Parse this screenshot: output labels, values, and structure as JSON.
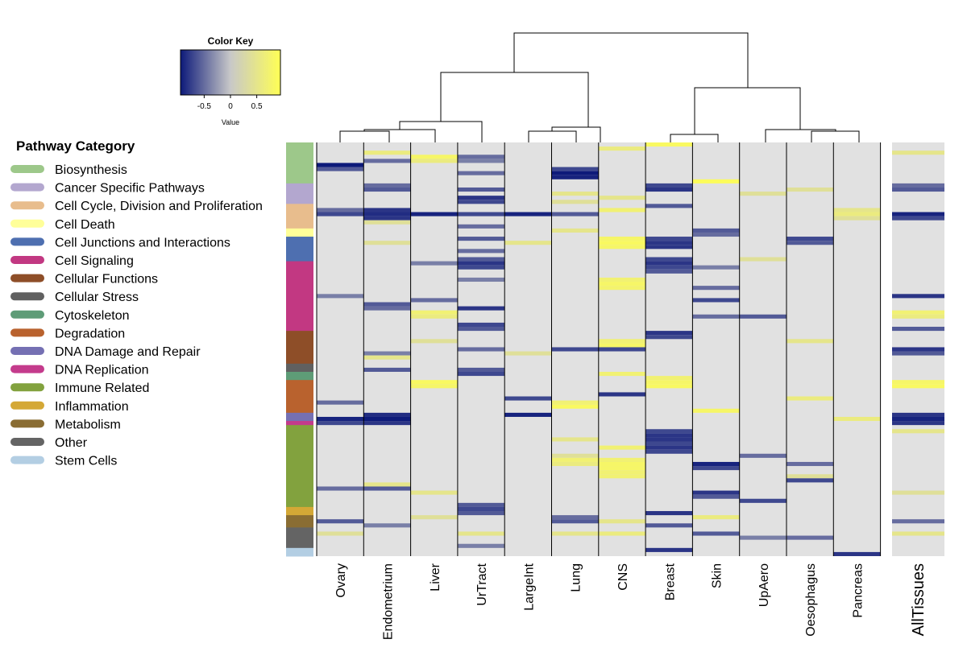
{
  "chart_data": {
    "type": "heatmap",
    "color_key": {
      "title": "Color Key",
      "xlabel": "Value",
      "ticks": [
        "-0.5",
        "0",
        "0.5"
      ],
      "tick_values": [
        -0.5,
        0,
        0.5
      ],
      "range": [
        -0.95,
        0.95
      ],
      "colors": {
        "low": "#0d1a7a",
        "mid": "#c8c8c8",
        "high": "#ffff55"
      }
    },
    "legend": {
      "title": "Pathway Category",
      "items": [
        {
          "label": "Biosynthesis",
          "color": "#9dc88a"
        },
        {
          "label": "Cancer Specific Pathways",
          "color": "#b3a7cf"
        },
        {
          "label": "Cell Cycle, Division and Proliferation",
          "color": "#e8bd8d"
        },
        {
          "label": "Cell Death",
          "color": "#ffff99"
        },
        {
          "label": "Cell Junctions and Interactions",
          "color": "#4e6fb0"
        },
        {
          "label": "Cell Signaling",
          "color": "#c23882"
        },
        {
          "label": "Cellular Functions",
          "color": "#8e4e28"
        },
        {
          "label": "Cellular Stress",
          "color": "#606060"
        },
        {
          "label": "Cytoskeleton",
          "color": "#5e9c77"
        },
        {
          "label": "Degradation",
          "color": "#b9622e"
        },
        {
          "label": "DNA Damage and Repair",
          "color": "#7570b3"
        },
        {
          "label": "DNA Replication",
          "color": "#c43b8c"
        },
        {
          "label": "Immune Related",
          "color": "#82a23e"
        },
        {
          "label": "Inflammation",
          "color": "#d4a836"
        },
        {
          "label": "Metabolism",
          "color": "#8a6d33"
        },
        {
          "label": "Other",
          "color": "#646464"
        },
        {
          "label": "Stem Cells",
          "color": "#b3cee3"
        }
      ]
    },
    "row_categories": [
      {
        "label": "Biosynthesis",
        "rows": 10
      },
      {
        "label": "Cancer Specific Pathways",
        "rows": 5
      },
      {
        "label": "Cell Cycle, Division and Proliferation",
        "rows": 6
      },
      {
        "label": "Cell Death",
        "rows": 2
      },
      {
        "label": "Cell Junctions and Interactions",
        "rows": 6
      },
      {
        "label": "Cell Signaling",
        "rows": 17
      },
      {
        "label": "Cellular Functions",
        "rows": 8
      },
      {
        "label": "Cellular Stress",
        "rows": 2
      },
      {
        "label": "Cytoskeleton",
        "rows": 2
      },
      {
        "label": "Degradation",
        "rows": 8
      },
      {
        "label": "DNA Damage and Repair",
        "rows": 2
      },
      {
        "label": "DNA Replication",
        "rows": 1
      },
      {
        "label": "Immune Related",
        "rows": 20
      },
      {
        "label": "Inflammation",
        "rows": 2
      },
      {
        "label": "Metabolism",
        "rows": 3
      },
      {
        "label": "Other",
        "rows": 5
      },
      {
        "label": "Stem Cells",
        "rows": 2
      }
    ],
    "columns": [
      "Ovary",
      "Endometrium",
      "Liver",
      "UrTract",
      "LargeInt",
      "Lung",
      "CNS",
      "Breast",
      "Skin",
      "UpAero",
      "Oesophagus",
      "Pancreas"
    ],
    "summary_column": "AllTissues",
    "n_rows": 101,
    "dendrogram_order": [
      [
        "Ovary",
        "Endometrium",
        "Liver",
        "UrTract"
      ],
      [
        "LargeInt",
        "Lung",
        "CNS"
      ],
      [
        "Breast",
        "Skin"
      ],
      [
        "UpAero",
        "Oesophagus",
        "Pancreas"
      ]
    ],
    "cells": {
      "Ovary": [
        [
          5,
          -0.95
        ],
        [
          6,
          -0.6
        ],
        [
          16,
          -0.5
        ],
        [
          17,
          -0.7
        ],
        [
          37,
          -0.4
        ],
        [
          63,
          -0.5
        ],
        [
          67,
          -0.9
        ],
        [
          68,
          -0.7
        ],
        [
          84,
          -0.5
        ],
        [
          92,
          -0.6
        ],
        [
          95,
          0.4
        ]
      ],
      "Endometrium": [
        [
          2,
          0.6
        ],
        [
          4,
          -0.5
        ],
        [
          10,
          -0.5
        ],
        [
          11,
          -0.6
        ],
        [
          16,
          -0.8
        ],
        [
          17,
          -0.85
        ],
        [
          18,
          -0.8
        ],
        [
          19,
          0.4
        ],
        [
          24,
          0.4
        ],
        [
          39,
          -0.6
        ],
        [
          40,
          -0.5
        ],
        [
          51,
          -0.4
        ],
        [
          52,
          0.5
        ],
        [
          55,
          -0.6
        ],
        [
          66,
          -0.85
        ],
        [
          67,
          -0.95
        ],
        [
          68,
          -0.8
        ],
        [
          83,
          0.5
        ],
        [
          84,
          -0.6
        ],
        [
          93,
          -0.4
        ]
      ],
      "Liver": [
        [
          3,
          0.8
        ],
        [
          4,
          0.6
        ],
        [
          17,
          -0.9
        ],
        [
          29,
          -0.4
        ],
        [
          38,
          -0.5
        ],
        [
          41,
          0.7
        ],
        [
          42,
          0.6
        ],
        [
          48,
          0.4
        ],
        [
          58,
          0.85
        ],
        [
          59,
          0.8
        ],
        [
          85,
          0.5
        ],
        [
          91,
          0.4
        ]
      ],
      "UrTract": [
        [
          3,
          -0.5
        ],
        [
          4,
          -0.4
        ],
        [
          7,
          -0.5
        ],
        [
          11,
          -0.6
        ],
        [
          13,
          -0.8
        ],
        [
          14,
          -0.7
        ],
        [
          17,
          -0.7
        ],
        [
          20,
          -0.5
        ],
        [
          23,
          -0.6
        ],
        [
          26,
          -0.5
        ],
        [
          28,
          -0.6
        ],
        [
          29,
          -0.8
        ],
        [
          30,
          -0.7
        ],
        [
          33,
          -0.4
        ],
        [
          40,
          -0.8
        ],
        [
          44,
          -0.7
        ],
        [
          45,
          -0.6
        ],
        [
          50,
          -0.5
        ],
        [
          55,
          -0.6
        ],
        [
          56,
          -0.7
        ],
        [
          88,
          -0.6
        ],
        [
          89,
          -0.7
        ],
        [
          90,
          -0.6
        ],
        [
          95,
          0.5
        ],
        [
          98,
          -0.4
        ]
      ],
      "LargeInt": [
        [
          17,
          -0.9
        ],
        [
          24,
          0.5
        ],
        [
          51,
          0.4
        ],
        [
          62,
          -0.7
        ],
        [
          66,
          -0.9
        ]
      ],
      "Lung": [
        [
          6,
          -0.7
        ],
        [
          7,
          -0.95
        ],
        [
          8,
          -0.9
        ],
        [
          12,
          0.5
        ],
        [
          14,
          0.4
        ],
        [
          17,
          -0.6
        ],
        [
          21,
          0.5
        ],
        [
          50,
          -0.7
        ],
        [
          63,
          0.7
        ],
        [
          64,
          0.85
        ],
        [
          72,
          0.5
        ],
        [
          76,
          0.4
        ],
        [
          77,
          0.7
        ],
        [
          78,
          0.6
        ],
        [
          91,
          -0.5
        ],
        [
          92,
          -0.6
        ],
        [
          95,
          0.5
        ]
      ],
      "CNS": [
        [
          1,
          0.6
        ],
        [
          13,
          0.5
        ],
        [
          16,
          0.7
        ],
        [
          23,
          0.8
        ],
        [
          24,
          0.85
        ],
        [
          25,
          0.8
        ],
        [
          33,
          0.7
        ],
        [
          34,
          0.8
        ],
        [
          35,
          0.75
        ],
        [
          48,
          0.7
        ],
        [
          49,
          0.8
        ],
        [
          50,
          -0.7
        ],
        [
          56,
          0.7
        ],
        [
          61,
          -0.8
        ],
        [
          74,
          0.7
        ],
        [
          77,
          0.7
        ],
        [
          78,
          0.8
        ],
        [
          79,
          0.8
        ],
        [
          80,
          0.7
        ],
        [
          81,
          0.7
        ],
        [
          92,
          0.5
        ],
        [
          95,
          0.6
        ]
      ],
      "Breast": [
        [
          0,
          0.85
        ],
        [
          10,
          -0.7
        ],
        [
          11,
          -0.8
        ],
        [
          15,
          -0.6
        ],
        [
          23,
          -0.7
        ],
        [
          24,
          -0.8
        ],
        [
          25,
          -0.8
        ],
        [
          28,
          -0.7
        ],
        [
          29,
          -0.8
        ],
        [
          30,
          -0.7
        ],
        [
          31,
          -0.6
        ],
        [
          46,
          -0.8
        ],
        [
          47,
          -0.7
        ],
        [
          57,
          0.7
        ],
        [
          58,
          0.8
        ],
        [
          59,
          0.85
        ],
        [
          70,
          -0.7
        ],
        [
          71,
          -0.8
        ],
        [
          72,
          -0.8
        ],
        [
          73,
          -0.7
        ],
        [
          74,
          -0.8
        ],
        [
          75,
          -0.7
        ],
        [
          90,
          -0.8
        ],
        [
          93,
          -0.6
        ],
        [
          99,
          -0.8
        ]
      ],
      "Skin": [
        [
          9,
          0.9
        ],
        [
          21,
          -0.6
        ],
        [
          22,
          -0.5
        ],
        [
          30,
          -0.4
        ],
        [
          35,
          -0.5
        ],
        [
          38,
          -0.7
        ],
        [
          42,
          -0.5
        ],
        [
          65,
          0.8
        ],
        [
          78,
          -0.9
        ],
        [
          79,
          -0.7
        ],
        [
          85,
          -0.8
        ],
        [
          86,
          -0.6
        ],
        [
          91,
          0.6
        ],
        [
          95,
          -0.6
        ]
      ],
      "UpAero": [
        [
          12,
          0.4
        ],
        [
          28,
          0.4
        ],
        [
          42,
          -0.6
        ],
        [
          76,
          -0.5
        ],
        [
          87,
          -0.7
        ],
        [
          96,
          -0.4
        ]
      ],
      "Oesophagus": [
        [
          11,
          0.4
        ],
        [
          23,
          -0.7
        ],
        [
          24,
          -0.6
        ],
        [
          48,
          0.5
        ],
        [
          62,
          0.6
        ],
        [
          78,
          -0.5
        ],
        [
          81,
          0.4
        ],
        [
          82,
          -0.7
        ],
        [
          96,
          -0.5
        ]
      ],
      "Pancreas": [
        [
          16,
          0.5
        ],
        [
          17,
          0.6
        ],
        [
          18,
          0.4
        ],
        [
          67,
          0.6
        ],
        [
          100,
          -0.8
        ]
      ],
      "AllTissues": [
        [
          2,
          0.5
        ],
        [
          10,
          -0.5
        ],
        [
          11,
          -0.6
        ],
        [
          17,
          -0.9
        ],
        [
          18,
          -0.7
        ],
        [
          37,
          -0.8
        ],
        [
          41,
          0.7
        ],
        [
          42,
          0.6
        ],
        [
          45,
          -0.6
        ],
        [
          50,
          -0.8
        ],
        [
          51,
          -0.6
        ],
        [
          58,
          0.8
        ],
        [
          59,
          0.85
        ],
        [
          66,
          -0.8
        ],
        [
          67,
          -0.9
        ],
        [
          68,
          -0.8
        ],
        [
          70,
          0.5
        ],
        [
          85,
          0.4
        ],
        [
          92,
          -0.5
        ],
        [
          95,
          0.5
        ]
      ]
    }
  }
}
